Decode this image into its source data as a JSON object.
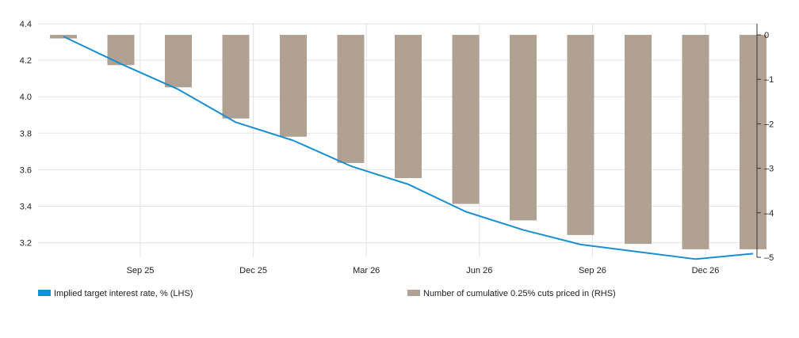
{
  "chart_data": {
    "type": "bar+line",
    "colors": {
      "line": "#1a8fd0",
      "bars": "#b0a193",
      "grid": "#e3e3e3",
      "axis": "#333333"
    },
    "x_ticks": [
      "Sep 25",
      "Dec 25",
      "Mar 26",
      "Jun 26",
      "Sep 26",
      "Dec 26"
    ],
    "y_left": {
      "ticks": [
        "4.4",
        "4.2",
        "4.0",
        "3.8",
        "3.6",
        "3.4",
        "3.2"
      ],
      "range": [
        3.12,
        4.4
      ]
    },
    "y_right": {
      "ticks": [
        "0",
        "-1",
        "-2",
        "-3",
        "-4",
        "-5"
      ],
      "range": [
        -5,
        0.25
      ]
    },
    "bar_dates": [
      "2025-07-30",
      "2025-09-17",
      "2025-10-29",
      "2025-12-10",
      "2026-01-28",
      "2026-03-18",
      "2026-04-29",
      "2026-06-17",
      "2026-07-29",
      "2026-09-16",
      "2026-10-28",
      "2026-12-09",
      "2027-01-27"
    ],
    "series": [
      {
        "name": "Number of cumulative 0.25% cuts priced in (RHS)",
        "axis": "right",
        "kind": "bar",
        "values": [
          -0.08,
          -0.68,
          -1.18,
          -1.88,
          -2.29,
          -2.88,
          -3.22,
          -3.8,
          -4.17,
          -4.5,
          -4.7,
          -4.82,
          -4.82
        ]
      },
      {
        "name": "Implied target interest rate, % (LHS)",
        "axis": "left",
        "kind": "line",
        "values": [
          4.33,
          4.18,
          4.04,
          3.86,
          3.76,
          3.62,
          3.52,
          3.37,
          3.27,
          3.19,
          3.15,
          3.11,
          3.14
        ]
      }
    ]
  },
  "legend": {
    "line_label": "Implied target interest rate, % (LHS)",
    "bar_label": "Number of cumulative 0.25% cuts priced in (RHS)"
  }
}
